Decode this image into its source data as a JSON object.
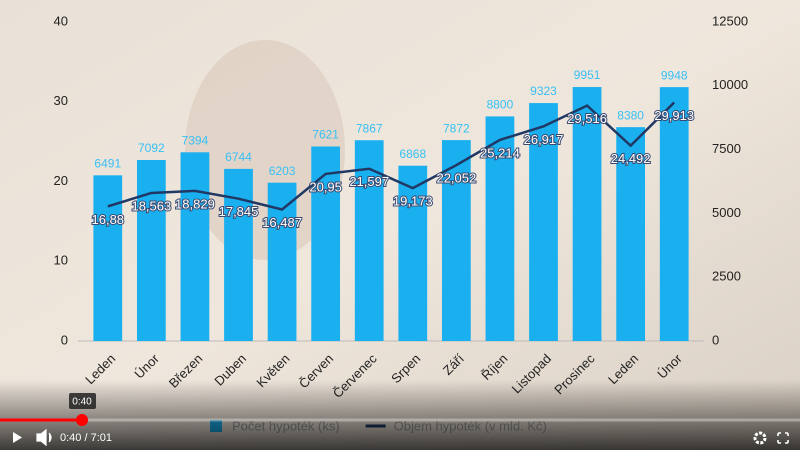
{
  "chart_data": {
    "type": "combo",
    "categories": [
      "Leden",
      "Únor",
      "Březen",
      "Duben",
      "Květen",
      "Červen",
      "Červenec",
      "Srpen",
      "Září",
      "Říjen",
      "Listopad",
      "Prosinec",
      "Leden",
      "Únor"
    ],
    "series": [
      {
        "name": "Počet hypoték (ks)",
        "type": "bar",
        "color": "#1ab0f0",
        "axis": "y2",
        "values": [
          6491,
          7092,
          7394,
          6744,
          6203,
          7621,
          7867,
          6868,
          7872,
          8800,
          9323,
          9951,
          8380,
          9948
        ]
      },
      {
        "name": "Objem hypoték (v mld. Kč)",
        "type": "line",
        "color": "#1f3864",
        "axis": "y",
        "values": [
          16.88,
          18.563,
          18.829,
          17.845,
          16.487,
          20.95,
          21.597,
          19.173,
          22.052,
          25.214,
          26.917,
          29.516,
          24.492,
          29.913
        ],
        "value_labels": [
          "16,88",
          "18,563",
          "18,829",
          "17,845",
          "16,487",
          "20,95",
          "21,597",
          "19,173",
          "22,052",
          "25,214",
          "26,917",
          "29,516",
          "24,492",
          "29,913"
        ]
      }
    ],
    "ylim": [
      0,
      40
    ],
    "yticks": [
      0,
      10,
      20,
      30,
      40
    ],
    "y2lim": [
      0,
      12500
    ],
    "y2ticks": [
      0,
      2500,
      5000,
      7500,
      10000,
      12500
    ],
    "legend": "bottom"
  },
  "player": {
    "tooltip": "0:40",
    "time": "0:40 / 7:01"
  }
}
